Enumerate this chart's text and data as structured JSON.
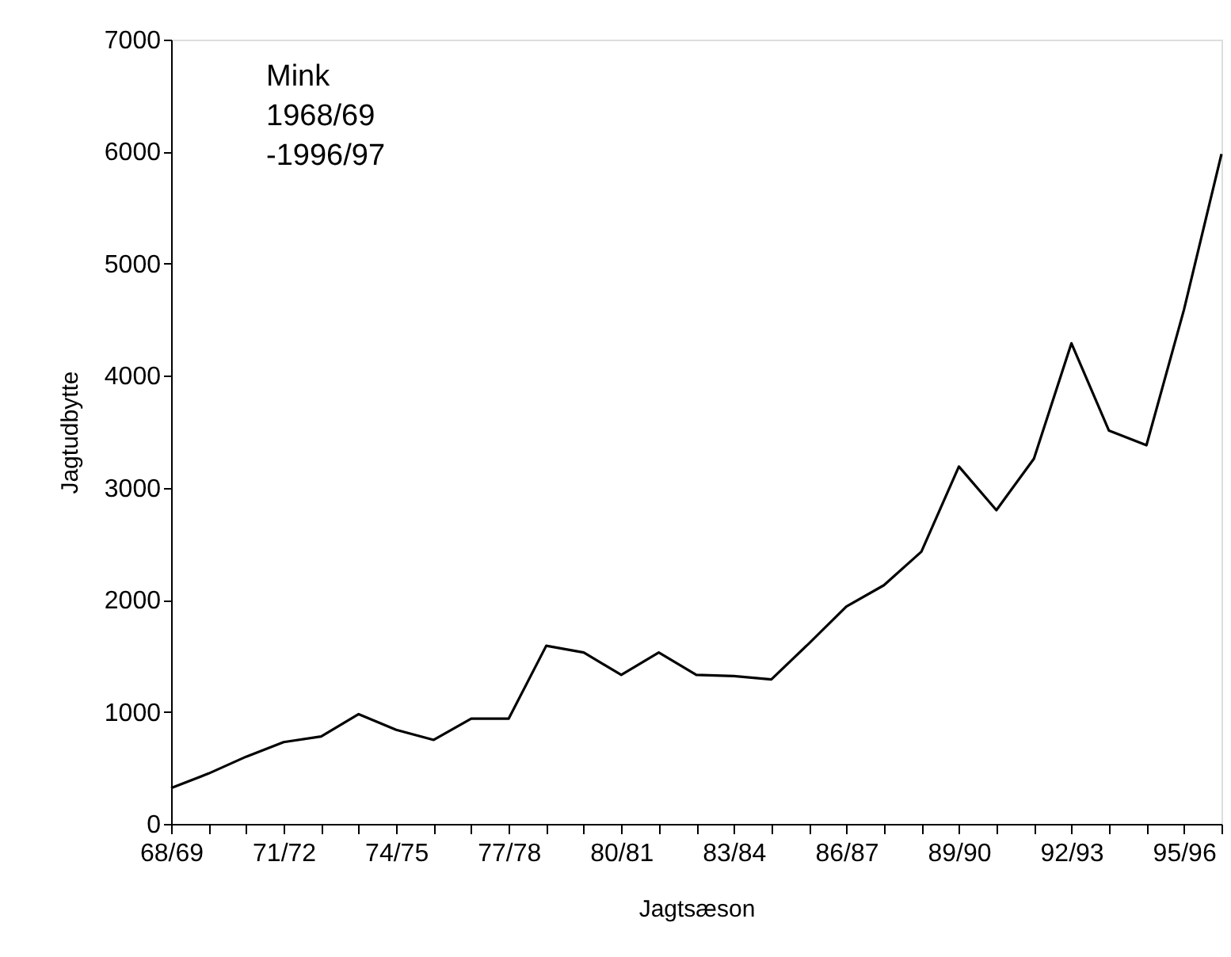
{
  "chart_data": {
    "type": "line",
    "xlabel": "Jagtsæson",
    "ylabel": "Jagtudbytte",
    "categories": [
      "68/69",
      null,
      null,
      "71/72",
      null,
      null,
      "74/75",
      null,
      null,
      "77/78",
      null,
      null,
      "80/81",
      null,
      null,
      "83/84",
      null,
      null,
      "86/87",
      null,
      null,
      "89/90",
      null,
      null,
      "92/93",
      null,
      null,
      "95/96",
      null
    ],
    "series": [
      {
        "color": "#000000",
        "values": [
          320,
          450,
          600,
          730,
          780,
          980,
          840,
          750,
          940,
          940,
          1590,
          1530,
          1330,
          1530,
          1330,
          1320,
          1290,
          1610,
          1940,
          2130,
          2430,
          3190,
          2800,
          3260,
          4290,
          3510,
          3380,
          4590,
          5980
        ]
      }
    ],
    "ylim": [
      0,
      7000
    ],
    "yticks": [
      0,
      1000,
      2000,
      3000,
      4000,
      5000,
      6000,
      7000
    ],
    "grid": false,
    "marker": "none",
    "line_style": "solid",
    "annotations": [
      "Mink",
      "1968/69",
      "-1996/97"
    ]
  }
}
